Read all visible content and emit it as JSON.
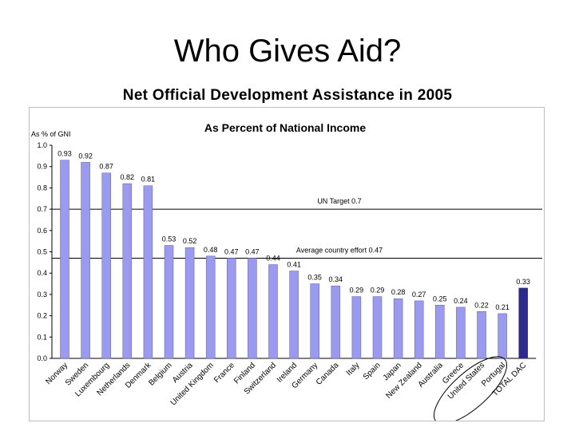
{
  "slide": {
    "title": "Who Gives Aid?",
    "subtitle": "Net Official Development Assistance in 2005"
  },
  "colors": {
    "bar": "#9a9bf0",
    "bar_stroke": "#5a5ab0",
    "total_bar": "#2b2b8f",
    "reference_line": "#000000",
    "circle": "#000000"
  },
  "chart_data": {
    "type": "bar",
    "title": "As Percent of National Income",
    "ylabel": "As % of GNI",
    "xlabel": "",
    "ylim": [
      0,
      1.0
    ],
    "y_ticks": [
      "0.0",
      "0.1",
      "0.2",
      "0.3",
      "0.4",
      "0.5",
      "0.6",
      "0.7",
      "0.8",
      "0.9",
      "1.0"
    ],
    "categories": [
      "Norway",
      "Sweden",
      "Luxembourg",
      "Netherlands",
      "Denmark",
      "Belgium",
      "Austria",
      "United Kingdom",
      "France",
      "Finland",
      "Switzerland",
      "Ireland",
      "Germany",
      "Canada",
      "Italy",
      "Spain",
      "Japan",
      "New Zealand",
      "Australia",
      "Greece",
      "United States",
      "Portugal",
      "TOTAL DAC"
    ],
    "values": [
      0.93,
      0.92,
      0.87,
      0.82,
      0.81,
      0.53,
      0.52,
      0.48,
      0.47,
      0.47,
      0.44,
      0.41,
      0.35,
      0.34,
      0.29,
      0.29,
      0.28,
      0.27,
      0.25,
      0.24,
      0.22,
      0.21,
      0.33
    ],
    "value_labels": [
      "0.93",
      "0.92",
      "0.87",
      "0.82",
      "0.81",
      "0.53",
      "0.52",
      "0.48",
      "0.47",
      "0.47",
      "0.44",
      "0.41",
      "0.35",
      "0.34",
      "0.29",
      "0.29",
      "0.28",
      "0.27",
      "0.25",
      "0.24",
      "0.22",
      "0.21",
      "0.33"
    ],
    "highlighted_category": "TOTAL DAC",
    "circled_categories": [
      "Greece",
      "United States",
      "Portugal"
    ],
    "reference_lines": [
      {
        "value": 0.7,
        "label": "UN Target 0.7"
      },
      {
        "value": 0.47,
        "label": "Average country effort 0.47"
      }
    ],
    "grid": false,
    "legend": "none"
  }
}
